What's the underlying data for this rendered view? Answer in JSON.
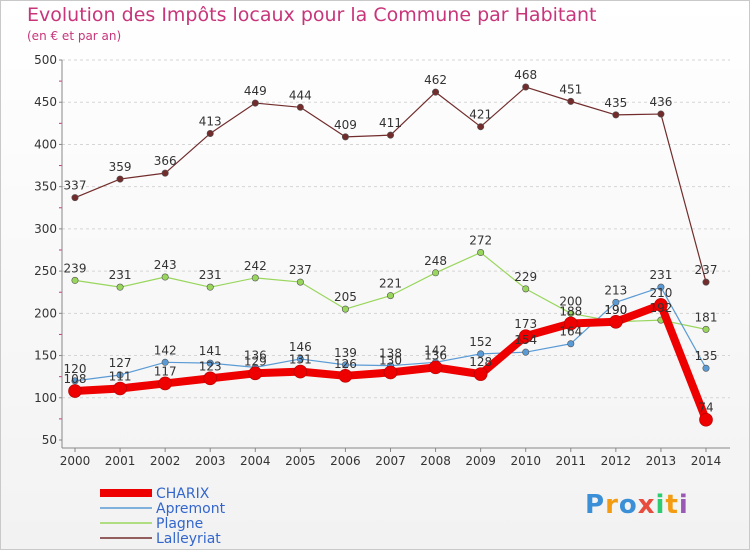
{
  "chart_data": {
    "type": "line",
    "title": "Evolution des Impôts locaux pour la Commune par Habitant",
    "subtitle": "(en € et par an)",
    "xlabel": "",
    "ylabel": "",
    "x": [
      "2000",
      "2001",
      "2002",
      "2003",
      "2004",
      "2005",
      "2006",
      "2007",
      "2008",
      "2009",
      "2010",
      "2011",
      "2012",
      "2013",
      "2014"
    ],
    "ylim": [
      50,
      500
    ],
    "yticks": [
      "50",
      "100",
      "150",
      "200",
      "250",
      "300",
      "350",
      "400",
      "450",
      "500"
    ],
    "grid": "horizontal dashed",
    "legend_position": "bottom-left",
    "series": [
      {
        "name": "Lalleyriat",
        "color": "#722c2c",
        "width": 1.2,
        "values": [
          337,
          359,
          366,
          413,
          449,
          444,
          409,
          411,
          462,
          421,
          468,
          451,
          435,
          436,
          237
        ]
      },
      {
        "name": "Plagne",
        "color": "#99d65c",
        "width": 1.2,
        "values": [
          239,
          231,
          243,
          231,
          242,
          237,
          205,
          221,
          248,
          272,
          229,
          200,
          190,
          192,
          181
        ]
      },
      {
        "name": "Apremont",
        "color": "#5b9bd5",
        "width": 1.2,
        "values": [
          120,
          127,
          142,
          141,
          136,
          146,
          139,
          138,
          142,
          152,
          154,
          164,
          213,
          231,
          135
        ]
      },
      {
        "name": "CHARIX",
        "color": "#ee0000",
        "width": 8,
        "values": [
          108,
          111,
          117,
          123,
          129,
          131,
          126,
          130,
          136,
          128,
          173,
          188,
          190,
          210,
          74
        ]
      }
    ],
    "labels": {
      "Lalleyriat": [
        "337",
        "359",
        "366",
        "413",
        "449",
        "444",
        "409",
        "411",
        "462",
        "421",
        "468",
        "451",
        "435",
        "436",
        "237"
      ],
      "Plagne": [
        "239",
        "231",
        "243",
        "231",
        "242",
        "237",
        "205",
        "221",
        "248",
        "272",
        "229",
        "200",
        "190",
        "192",
        "181"
      ],
      "Apremont": [
        "120",
        "127",
        "142",
        "141",
        "136",
        "146",
        "139",
        "138",
        "142",
        "152",
        "154",
        "164",
        "213",
        "231",
        "135"
      ],
      "CHARIX": [
        "108",
        "111",
        "117",
        "123",
        "129",
        "131",
        "126",
        "130",
        "136",
        "128",
        "173",
        "188",
        "190",
        "210",
        "74"
      ]
    },
    "legend": [
      "CHARIX",
      "Apremont",
      "Plagne",
      "Lalleyriat"
    ]
  },
  "brand": {
    "logo_text": "Proxiti",
    "colors": [
      "#3a8fd6",
      "#f39c12",
      "#3a8fd6",
      "#e74c3c",
      "#2ecc71",
      "#f39c12",
      "#9b59b6"
    ]
  }
}
